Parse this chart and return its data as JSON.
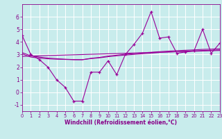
{
  "xlabel": "Windchill (Refroidissement éolien,°C)",
  "background_color": "#c8ecec",
  "grid_color": "#aadddd",
  "line_color": "#990099",
  "x_data": [
    0,
    1,
    2,
    3,
    4,
    5,
    6,
    7,
    8,
    9,
    10,
    11,
    12,
    13,
    14,
    15,
    16,
    17,
    18,
    19,
    20,
    21,
    22,
    23
  ],
  "y_scatter": [
    4.5,
    3.0,
    2.6,
    2.0,
    1.0,
    0.4,
    -0.7,
    -0.7,
    1.6,
    1.6,
    2.5,
    1.4,
    3.0,
    3.8,
    4.7,
    6.4,
    4.3,
    4.4,
    3.1,
    3.2,
    3.3,
    5.0,
    3.1,
    3.9
  ],
  "y_regr1": [
    2.85,
    2.88,
    2.9,
    2.92,
    2.94,
    2.96,
    2.98,
    3.0,
    3.02,
    3.04,
    3.06,
    3.08,
    3.1,
    3.12,
    3.14,
    3.16,
    3.18,
    3.2,
    3.22,
    3.24,
    3.26,
    3.28,
    3.3,
    3.32
  ],
  "y_regr2": [
    3.05,
    2.8,
    2.72,
    2.66,
    2.63,
    2.61,
    2.59,
    2.59,
    2.68,
    2.74,
    2.83,
    2.9,
    2.96,
    3.01,
    3.06,
    3.11,
    3.16,
    3.2,
    3.23,
    3.26,
    3.29,
    3.32,
    3.34,
    3.37
  ],
  "y_regr3": [
    3.15,
    2.9,
    2.8,
    2.72,
    2.67,
    2.63,
    2.6,
    2.59,
    2.7,
    2.77,
    2.88,
    2.95,
    3.02,
    3.08,
    3.14,
    3.18,
    3.23,
    3.27,
    3.31,
    3.34,
    3.37,
    3.41,
    3.43,
    3.46
  ],
  "xlim": [
    0,
    23
  ],
  "ylim": [
    -1.5,
    7.0
  ],
  "yticks": [
    -1,
    0,
    1,
    2,
    3,
    4,
    5,
    6
  ],
  "xticks": [
    0,
    1,
    2,
    3,
    4,
    5,
    6,
    7,
    8,
    9,
    10,
    11,
    12,
    13,
    14,
    15,
    16,
    17,
    18,
    19,
    20,
    21,
    22,
    23
  ]
}
